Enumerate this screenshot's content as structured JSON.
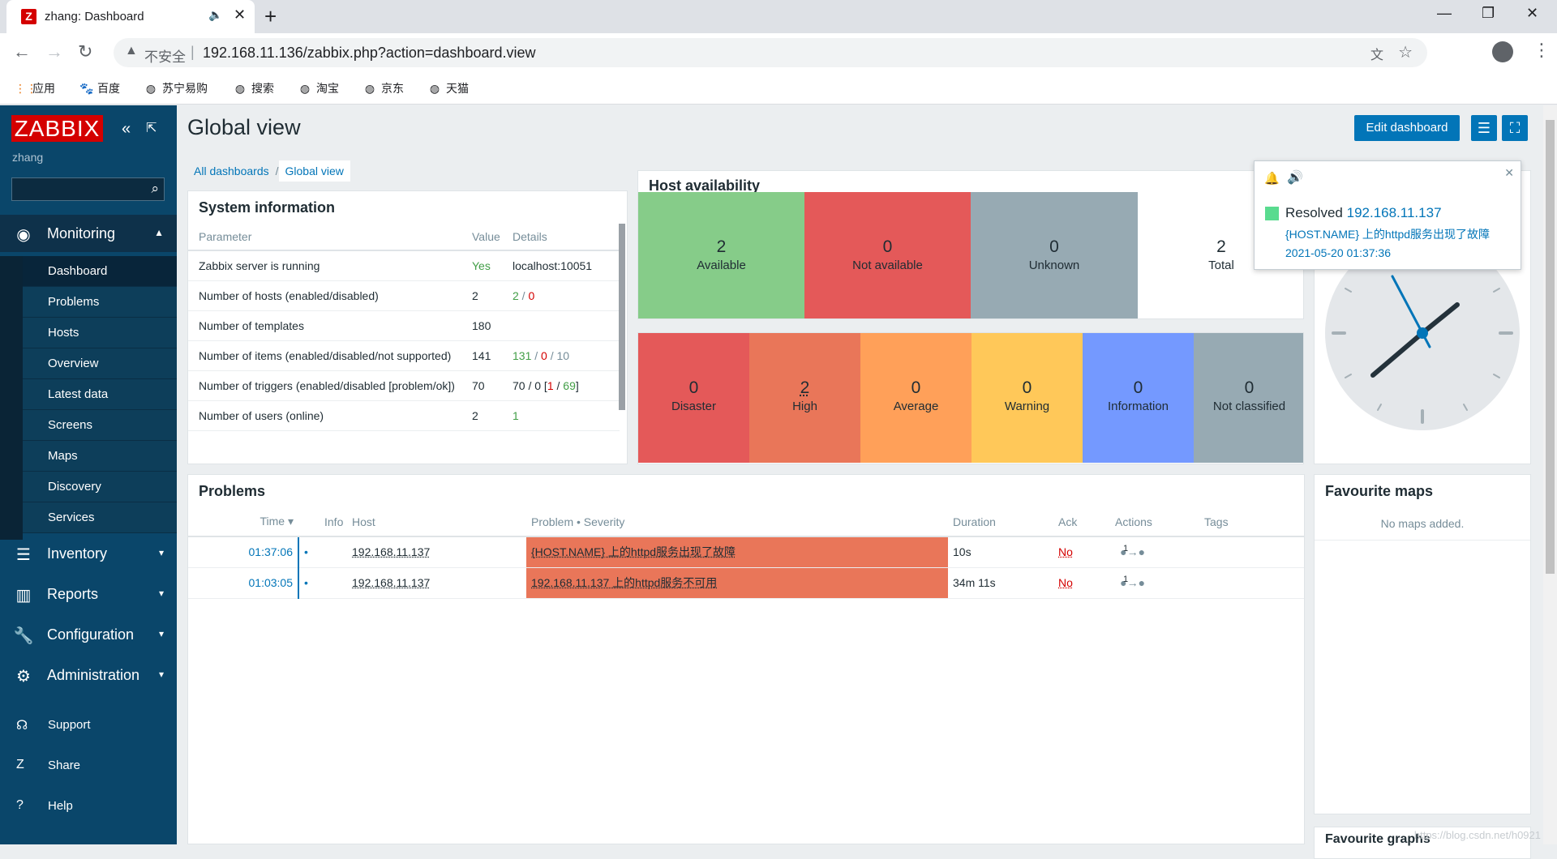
{
  "browser": {
    "tab_title": "zhang: Dashboard",
    "tab_favicon": "Z",
    "insecure_label": "不安全",
    "url": "192.168.11.136/zabbix.php?action=dashboard.view",
    "bookmarks": [
      {
        "label": "应用",
        "icon": "apps-icon"
      },
      {
        "label": "百度",
        "icon": "baidu-icon"
      },
      {
        "label": "苏宁易购",
        "icon": "globe-icon"
      },
      {
        "label": "搜索",
        "icon": "globe-icon"
      },
      {
        "label": "淘宝",
        "icon": "globe-icon"
      },
      {
        "label": "京东",
        "icon": "globe-icon"
      },
      {
        "label": "天猫",
        "icon": "globe-icon"
      }
    ]
  },
  "sidebar": {
    "logo": "ZABBIX",
    "user": "zhang",
    "search_placeholder": "",
    "sections": [
      {
        "label": "Monitoring",
        "icon": "eye-icon"
      },
      {
        "label": "Inventory",
        "icon": "list-icon"
      },
      {
        "label": "Reports",
        "icon": "bar-chart-icon"
      },
      {
        "label": "Configuration",
        "icon": "wrench-icon"
      },
      {
        "label": "Administration",
        "icon": "gear-icon"
      }
    ],
    "monitoring_items": [
      "Dashboard",
      "Problems",
      "Hosts",
      "Overview",
      "Latest data",
      "Screens",
      "Maps",
      "Discovery",
      "Services"
    ],
    "footer": [
      {
        "label": "Support",
        "icon": "headset-icon"
      },
      {
        "label": "Share",
        "icon": "share-icon"
      },
      {
        "label": "Help",
        "icon": "help-icon"
      }
    ]
  },
  "header": {
    "title": "Global view",
    "edit_label": "Edit dashboard",
    "breadcrumb": [
      "All dashboards",
      "Global view"
    ]
  },
  "system_info": {
    "title": "System information",
    "columns": [
      "Parameter",
      "Value",
      "Details"
    ],
    "rows": [
      {
        "param": "Zabbix server is running",
        "value": "Yes",
        "details": "localhost:10051"
      },
      {
        "param": "Number of hosts (enabled/disabled)",
        "value": "2",
        "details": [
          "2",
          " / ",
          "0"
        ]
      },
      {
        "param": "Number of templates",
        "value": "180",
        "details": ""
      },
      {
        "param": "Number of items (enabled/disabled/not supported)",
        "value": "141",
        "details": [
          "131",
          " / ",
          "0",
          " / ",
          "10"
        ]
      },
      {
        "param": "Number of triggers (enabled/disabled [problem/ok])",
        "value": "70",
        "details": [
          "70 / 0 [",
          "1",
          " / ",
          "69",
          "]"
        ]
      },
      {
        "param": "Number of users (online)",
        "value": "2",
        "details": "1"
      }
    ]
  },
  "host_availability": {
    "title": "Host availability",
    "cells": [
      {
        "count": "2",
        "label": "Available",
        "color": "#86cc89"
      },
      {
        "count": "0",
        "label": "Not available",
        "color": "#e45959"
      },
      {
        "count": "0",
        "label": "Unknown",
        "color": "#97aab3"
      },
      {
        "count": "2",
        "label": "Total",
        "color": "#ffffff"
      }
    ]
  },
  "severity": {
    "cells": [
      {
        "count": "0",
        "label": "Disaster",
        "color": "#e45959"
      },
      {
        "count": "2",
        "label": "High",
        "color": "#e97659"
      },
      {
        "count": "0",
        "label": "Average",
        "color": "#ffa059"
      },
      {
        "count": "0",
        "label": "Warning",
        "color": "#ffc859"
      },
      {
        "count": "0",
        "label": "Information",
        "color": "#7499ff"
      },
      {
        "count": "0",
        "label": "Not classified",
        "color": "#97aab3"
      }
    ]
  },
  "notification": {
    "status": "Resolved",
    "host": "192.168.11.137",
    "message": "{HOST.NAME} 上的httpd服务出现了故障",
    "time": "2021-05-20 01:37:36"
  },
  "problems": {
    "title": "Problems",
    "columns": [
      "Time ▾",
      "Info",
      "Host",
      "Problem • Severity",
      "Duration",
      "Ack",
      "Actions",
      "Tags"
    ],
    "rows": [
      {
        "time": "01:37:06",
        "host": "192.168.11.137",
        "problem": "{HOST.NAME} 上的httpd服务出现了故障",
        "duration": "10s",
        "ack": "No",
        "actions": "1"
      },
      {
        "time": "01:03:05",
        "host": "192.168.11.137",
        "problem": "192.168.11.137 上的httpd服务不可用",
        "duration": "34m 11s",
        "ack": "No",
        "actions": "1"
      }
    ]
  },
  "favourite_maps": {
    "title": "Favourite maps",
    "empty": "No maps added."
  },
  "favourite_graphs": {
    "title": "Favourite graphs"
  },
  "watermark": "https://blog.csdn.net/h0921"
}
